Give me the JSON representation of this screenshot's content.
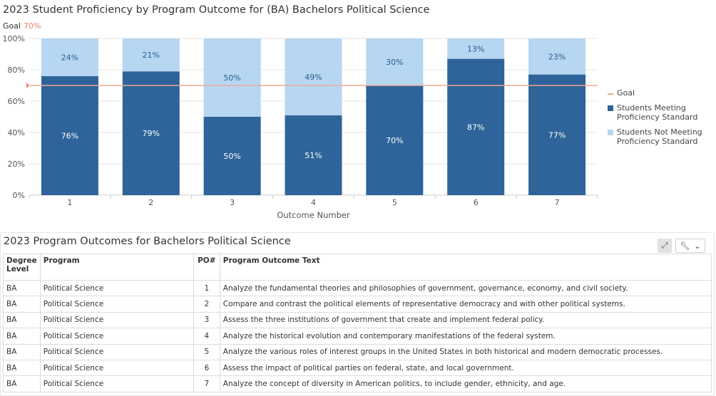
{
  "chart_data": {
    "type": "bar",
    "stacked": true,
    "title": "2023 Student Proficiency by Program Outcome for (BA) Bachelors Political Science",
    "goal_label": "Goal",
    "goal_value_label": "70%",
    "goal_value": 70,
    "categories": [
      "1",
      "2",
      "3",
      "4",
      "5",
      "6",
      "7"
    ],
    "series": [
      {
        "name": "Students Meeting Proficiency Standard",
        "values": [
          76,
          79,
          50,
          51,
          70,
          87,
          77
        ],
        "labels": [
          "76%",
          "79%",
          "50%",
          "51%",
          "70%",
          "87%",
          "77%"
        ],
        "color": "#2e6499"
      },
      {
        "name": "Students Not Meeting Proficiency Standard",
        "values": [
          24,
          21,
          50,
          49,
          30,
          13,
          23
        ],
        "labels": [
          "24%",
          "21%",
          "50%",
          "49%",
          "30%",
          "13%",
          "23%"
        ],
        "color": "#b6d6f2"
      }
    ],
    "xlabel": "Outcome Number",
    "ylabel": "",
    "ylim": [
      0,
      100
    ],
    "yticks": [
      "0%",
      "20%",
      "40%",
      "60%",
      "80%",
      "100%"
    ],
    "yticks_values": [
      0,
      20,
      40,
      60,
      80,
      100
    ],
    "goal_color": "#f0a896",
    "legend": {
      "position": "right",
      "goal_entry": "Goal"
    },
    "grid": true
  },
  "table": {
    "title": "2023 Program Outcomes for Bachelors Political Science",
    "expand_icon": "expand-icon",
    "tools_icon": "wrench-icon",
    "columns": [
      "Degree Level",
      "Program",
      "PO#",
      "Program Outcome Text"
    ],
    "rows": [
      [
        "BA",
        "Political Science",
        "1",
        "Analyze the fundamental theories and philosophies of government, governance, economy, and civil society."
      ],
      [
        "BA",
        "Political Science",
        "2",
        "Compare and contrast the political elements of representative democracy and with other political systems."
      ],
      [
        "BA",
        "Political Science",
        "3",
        "Assess the three institutions of government that create and implement federal policy."
      ],
      [
        "BA",
        "Political Science",
        "4",
        "Analyze the historical evolution and contemporary manifestations of the federal system."
      ],
      [
        "BA",
        "Political Science",
        "5",
        "Analyze the various roles of interest groups in the United States in both historical and modern democratic processes."
      ],
      [
        "BA",
        "Political Science",
        "6",
        "Assess the impact of political parties on federal, state, and local government."
      ],
      [
        "BA",
        "Political Science",
        "7",
        "Analyze the concept of diversity in American politics, to include gender, ethnicity, and age."
      ]
    ]
  }
}
